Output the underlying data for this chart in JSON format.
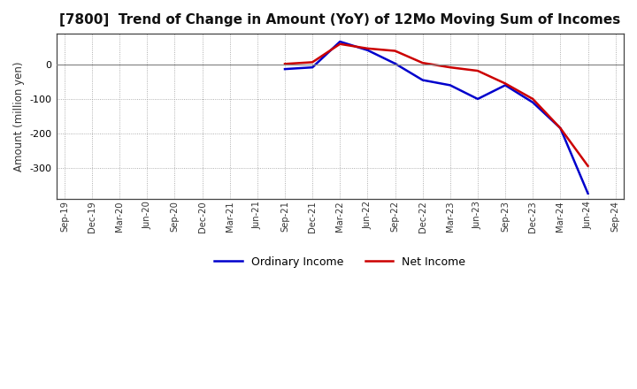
{
  "title": "[7800]  Trend of Change in Amount (YoY) of 12Mo Moving Sum of Incomes",
  "ylabel": "Amount (million yen)",
  "background_color": "#ffffff",
  "plot_bg_color": "#ffffff",
  "grid_color": "#999999",
  "x_labels": [
    "Sep-19",
    "Dec-19",
    "Mar-20",
    "Jun-20",
    "Sep-20",
    "Dec-20",
    "Mar-21",
    "Jun-21",
    "Sep-21",
    "Dec-21",
    "Mar-22",
    "Jun-22",
    "Sep-22",
    "Dec-22",
    "Mar-23",
    "Jun-23",
    "Sep-23",
    "Dec-23",
    "Mar-24",
    "Jun-24",
    "Sep-24"
  ],
  "ordinary_income": [
    null,
    null,
    null,
    null,
    null,
    null,
    null,
    null,
    -13,
    -8,
    67,
    42,
    3,
    -45,
    -60,
    -100,
    -60,
    -110,
    -185,
    -375,
    null
  ],
  "net_income": [
    null,
    null,
    null,
    null,
    null,
    null,
    null,
    null,
    2,
    7,
    60,
    47,
    40,
    5,
    -8,
    -18,
    -55,
    -100,
    -185,
    -295,
    null
  ],
  "ordinary_color": "#0000cc",
  "net_color": "#cc0000",
  "ylim": [
    -390,
    90
  ],
  "yticks": [
    0,
    -100,
    -200,
    -300
  ],
  "line_width": 1.8,
  "title_fontsize": 11,
  "legend_labels": [
    "Ordinary Income",
    "Net Income"
  ]
}
